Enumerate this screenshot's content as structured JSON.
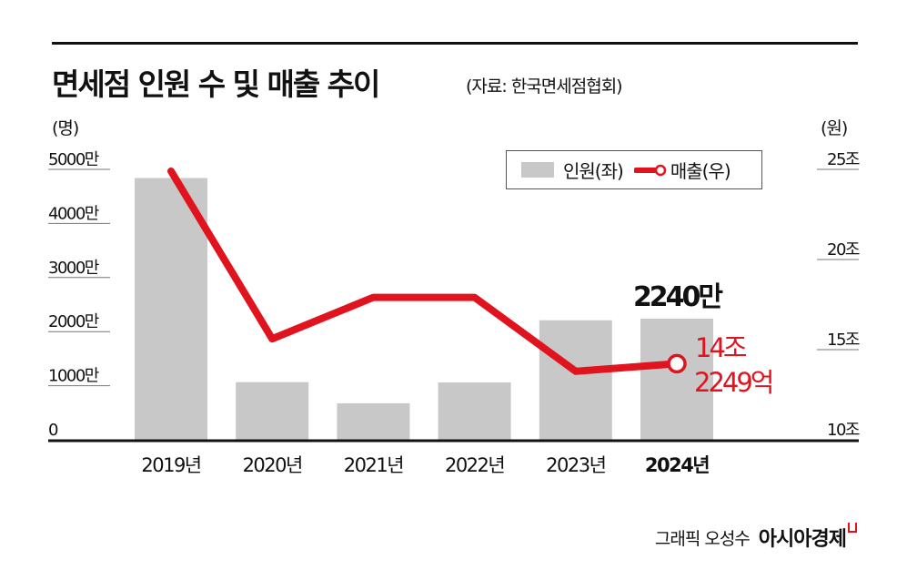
{
  "header": {
    "title": "면세점 인원 수 및 매출 추이",
    "source": "(자료: 한국면세점협회)"
  },
  "footer": {
    "credit": "그래픽 오성수",
    "brand": "아시아경제"
  },
  "colors": {
    "bar": "#c8c8c8",
    "line": "#e0141e",
    "text": "#111111"
  },
  "chart_data": {
    "type": "bar+line",
    "title": "면세점 인원 수 및 매출 추이",
    "categories": [
      "2019년",
      "2020년",
      "2021년",
      "2022년",
      "2023년",
      "2024년"
    ],
    "series": [
      {
        "name": "인원(좌)",
        "type": "bar",
        "axis": "left",
        "unit": "만 명",
        "values": [
          4840,
          1066,
          675,
          1060,
          2210,
          2240
        ]
      },
      {
        "name": "매출(우)",
        "type": "line",
        "axis": "right",
        "unit": "조 원",
        "values": [
          24.9,
          15.6,
          17.9,
          17.9,
          13.8,
          14.2249
        ]
      }
    ],
    "left_axis": {
      "unit_label": "(명)",
      "range": [
        0,
        5000
      ],
      "ticks": [
        0,
        1000,
        2000,
        3000,
        4000,
        5000
      ],
      "tick_labels": [
        "0",
        "1000만",
        "2000만",
        "3000만",
        "4000만",
        "5000만"
      ]
    },
    "right_axis": {
      "unit_label": "(원)",
      "range": [
        10,
        25
      ],
      "ticks": [
        10,
        15,
        20,
        25
      ],
      "tick_labels": [
        "10조",
        "15조",
        "20조",
        "25조"
      ]
    },
    "legend": {
      "position": "top-right",
      "items": [
        "인원(좌)",
        "매출(우)"
      ]
    },
    "annotations": {
      "bar_last": "2240만",
      "line_last_1": "14조",
      "line_last_2": "2249억"
    }
  }
}
